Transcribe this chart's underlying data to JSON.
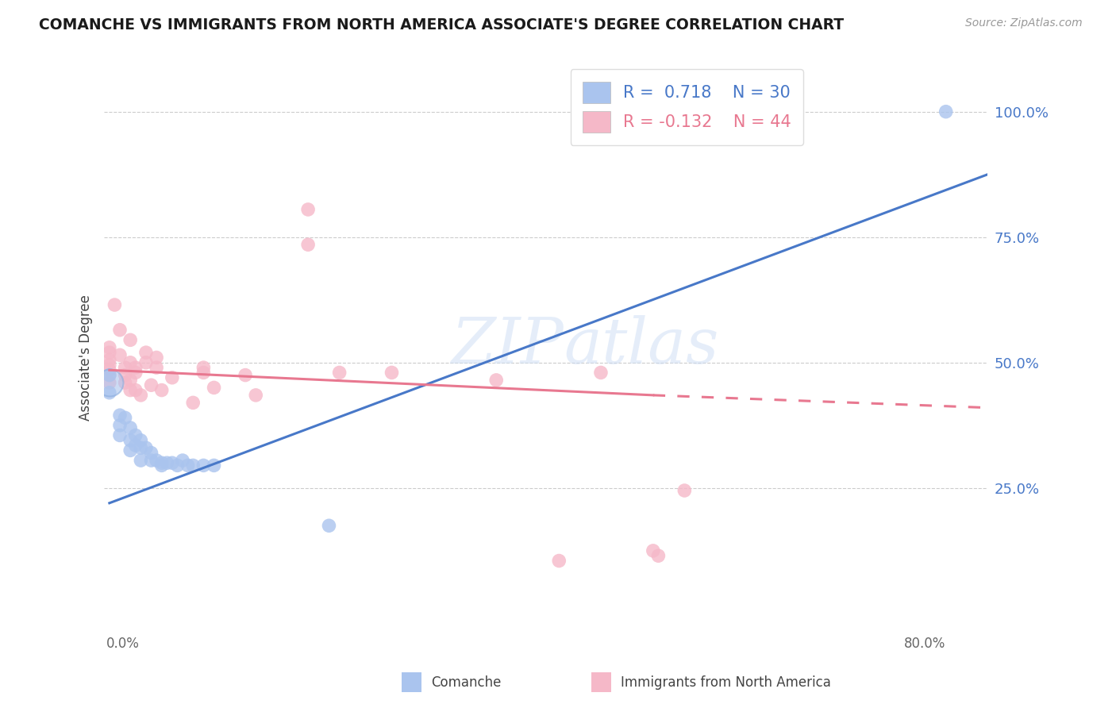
{
  "title": "COMANCHE VS IMMIGRANTS FROM NORTH AMERICA ASSOCIATE'S DEGREE CORRELATION CHART",
  "source": "Source: ZipAtlas.com",
  "x_left_label": "0.0%",
  "x_right_label": "80.0%",
  "right_ytick_labels": [
    "100.0%",
    "75.0%",
    "50.0%",
    "25.0%"
  ],
  "right_ytick_vals": [
    1.0,
    0.75,
    0.5,
    0.25
  ],
  "xlim": [
    -0.005,
    0.84
  ],
  "ylim": [
    -0.08,
    1.1
  ],
  "blue_r": 0.718,
  "blue_n": 30,
  "pink_r": -0.132,
  "pink_n": 44,
  "blue_color": "#aac4ee",
  "pink_color": "#f5b8c8",
  "blue_line_color": "#4878c8",
  "pink_line_color": "#e87890",
  "watermark_zip": "ZIP",
  "watermark_atlas": "atlas",
  "legend_label_blue": "Comanche",
  "legend_label_pink": "Immigrants from North America",
  "blue_line_x0": 0.0,
  "blue_line_y0": 0.22,
  "blue_line_x1": 0.84,
  "blue_line_y1": 0.875,
  "pink_line_x0": 0.0,
  "pink_line_y0": 0.485,
  "pink_line_solid_x1": 0.52,
  "pink_line_solid_y1": 0.435,
  "pink_line_dash_x1": 0.84,
  "pink_line_dash_y1": 0.41,
  "blue_points": [
    [
      0.0,
      0.44
    ],
    [
      0.0,
      0.475
    ],
    [
      0.01,
      0.395
    ],
    [
      0.01,
      0.375
    ],
    [
      0.01,
      0.355
    ],
    [
      0.015,
      0.39
    ],
    [
      0.02,
      0.37
    ],
    [
      0.02,
      0.345
    ],
    [
      0.02,
      0.325
    ],
    [
      0.025,
      0.355
    ],
    [
      0.025,
      0.335
    ],
    [
      0.03,
      0.345
    ],
    [
      0.03,
      0.33
    ],
    [
      0.03,
      0.305
    ],
    [
      0.035,
      0.33
    ],
    [
      0.04,
      0.32
    ],
    [
      0.04,
      0.305
    ],
    [
      0.045,
      0.305
    ],
    [
      0.05,
      0.3
    ],
    [
      0.05,
      0.295
    ],
    [
      0.055,
      0.3
    ],
    [
      0.06,
      0.3
    ],
    [
      0.065,
      0.295
    ],
    [
      0.07,
      0.305
    ],
    [
      0.075,
      0.295
    ],
    [
      0.08,
      0.295
    ],
    [
      0.09,
      0.295
    ],
    [
      0.1,
      0.295
    ],
    [
      0.21,
      0.175
    ],
    [
      0.8,
      1.0
    ]
  ],
  "pink_points": [
    [
      0.0,
      0.53
    ],
    [
      0.0,
      0.52
    ],
    [
      0.0,
      0.505
    ],
    [
      0.0,
      0.495
    ],
    [
      0.0,
      0.485
    ],
    [
      0.0,
      0.475
    ],
    [
      0.0,
      0.46
    ],
    [
      0.005,
      0.615
    ],
    [
      0.01,
      0.565
    ],
    [
      0.01,
      0.515
    ],
    [
      0.015,
      0.49
    ],
    [
      0.015,
      0.475
    ],
    [
      0.015,
      0.46
    ],
    [
      0.02,
      0.545
    ],
    [
      0.02,
      0.5
    ],
    [
      0.02,
      0.465
    ],
    [
      0.02,
      0.445
    ],
    [
      0.025,
      0.49
    ],
    [
      0.025,
      0.48
    ],
    [
      0.025,
      0.445
    ],
    [
      0.03,
      0.435
    ],
    [
      0.035,
      0.52
    ],
    [
      0.035,
      0.5
    ],
    [
      0.04,
      0.455
    ],
    [
      0.045,
      0.51
    ],
    [
      0.045,
      0.49
    ],
    [
      0.05,
      0.445
    ],
    [
      0.06,
      0.47
    ],
    [
      0.08,
      0.42
    ],
    [
      0.09,
      0.49
    ],
    [
      0.09,
      0.48
    ],
    [
      0.1,
      0.45
    ],
    [
      0.13,
      0.475
    ],
    [
      0.14,
      0.435
    ],
    [
      0.19,
      0.805
    ],
    [
      0.19,
      0.735
    ],
    [
      0.22,
      0.48
    ],
    [
      0.27,
      0.48
    ],
    [
      0.37,
      0.465
    ],
    [
      0.47,
      0.48
    ],
    [
      0.43,
      0.105
    ],
    [
      0.525,
      0.115
    ],
    [
      0.52,
      0.125
    ],
    [
      0.55,
      0.245
    ]
  ]
}
